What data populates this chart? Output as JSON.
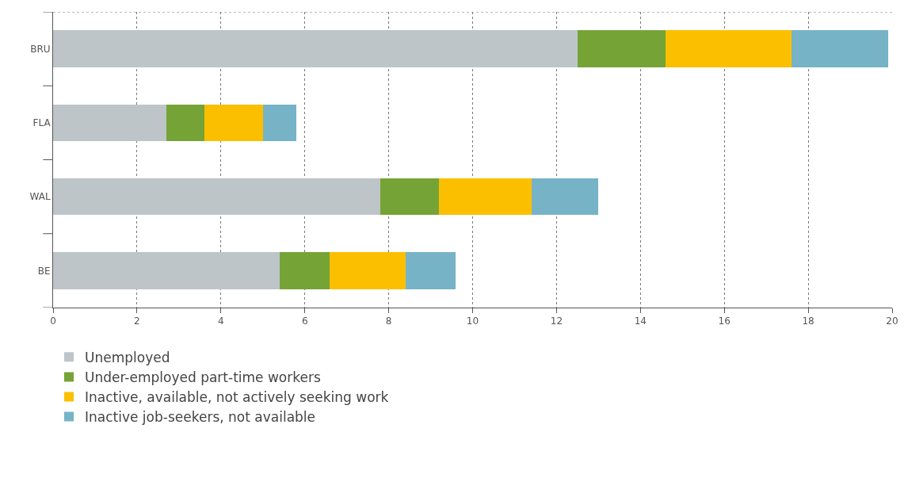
{
  "chart_data": {
    "type": "bar",
    "orientation": "horizontal",
    "stacked": true,
    "categories": [
      "BRU",
      "FLA",
      "WAL",
      "BE"
    ],
    "series": [
      {
        "name": "Unemployed",
        "color": "#bdc5c9",
        "values": [
          12.5,
          2.7,
          7.8,
          5.4
        ]
      },
      {
        "name": "Under-employed part-time workers",
        "color": "#76a336",
        "values": [
          2.1,
          0.9,
          1.4,
          1.2
        ]
      },
      {
        "name": "Inactive, available, not actively seeking work",
        "color": "#fcbf00",
        "values": [
          3.0,
          1.4,
          2.2,
          1.8
        ]
      },
      {
        "name": "Inactive job-seekers, not available",
        "color": "#76b3c6",
        "values": [
          2.3,
          0.8,
          1.6,
          1.2
        ]
      }
    ],
    "xlim": [
      0,
      20
    ],
    "xticks": [
      0,
      2,
      4,
      6,
      8,
      10,
      12,
      14,
      16,
      18,
      20
    ],
    "grid": "x",
    "legend": "bottom"
  }
}
